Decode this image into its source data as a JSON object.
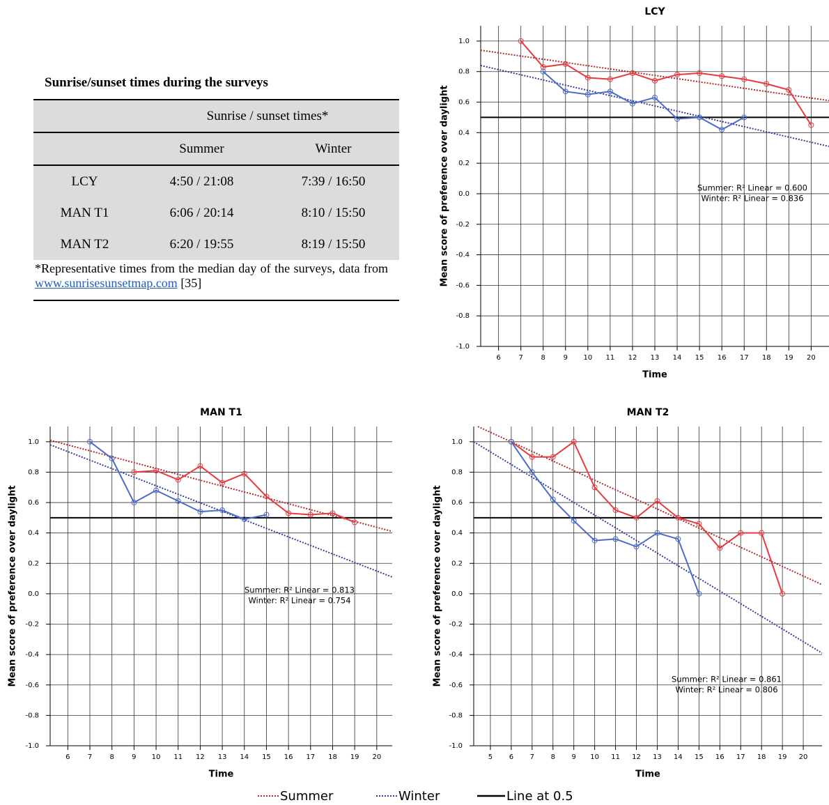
{
  "table": {
    "title": "Sunrise/sunset times during the surveys",
    "group_header": "Sunrise / sunset times*",
    "columns": [
      "Summer",
      "Winter"
    ],
    "rows": [
      [
        "LCY",
        "4:50 / 21:08",
        "7:39 / 16:50"
      ],
      [
        "MAN T1",
        "6:06 / 20:14",
        "8:10 / 15:50"
      ],
      [
        "MAN T2",
        "6:20 / 19:55",
        "8:19 / 15:50"
      ]
    ],
    "footnote": "*Representative times from the median day of the surveys, data from ",
    "link": "www.sunrisesunsetmap.com",
    "reference": " [35]"
  },
  "reference_line_label": "Line at 0.5",
  "chart_data": [
    {
      "type": "line",
      "title": "LCY",
      "xlabel": "Time",
      "ylabel": "Mean score of preference over daylight",
      "xlim": [
        5.2,
        20.8
      ],
      "ylim": [
        -1.0,
        1.1
      ],
      "xticks": [
        6,
        7,
        8,
        9,
        10,
        11,
        12,
        13,
        14,
        15,
        16,
        17,
        18,
        19,
        20
      ],
      "yticks": [
        {
          "value": 1.0,
          "label": "1.0"
        },
        {
          "value": 0.8,
          "label": "0.8"
        },
        {
          "value": 0.6,
          "label": "0.6"
        },
        {
          "value": 0.4,
          "label": "0.4"
        },
        {
          "value": 0.2,
          "label": "0.2"
        },
        {
          "value": 0.0,
          "label": "0.0"
        },
        {
          "value": -0.2,
          "label": "-0.2"
        },
        {
          "value": -0.4,
          "label": "-0.4"
        },
        {
          "value": -0.6,
          "label": "-0.6"
        },
        {
          "value": -0.8,
          "label": "-0.8"
        },
        {
          "value": -1.0,
          "label": "-1.0"
        }
      ],
      "grid": true,
      "ref_value": 0.5,
      "series": [
        {
          "name": "Summer",
          "color": "#e8393f",
          "fit_color": "#b02a2a",
          "x": [
            7,
            8,
            9,
            10,
            11,
            12,
            13,
            14,
            15,
            16,
            17,
            18,
            19,
            20
          ],
          "values": [
            1.0,
            0.83,
            0.85,
            0.76,
            0.75,
            0.79,
            0.74,
            0.78,
            0.79,
            0.77,
            0.75,
            0.72,
            0.68,
            0.45
          ],
          "fit": {
            "x": [
              5.2,
              20.8
            ],
            "values": [
              0.94,
              0.61
            ]
          }
        },
        {
          "name": "Winter",
          "color": "#4a6cc8",
          "fit_color": "#3a3a9e",
          "x": [
            8,
            9,
            10,
            11,
            12,
            13,
            14,
            15,
            16,
            17
          ],
          "values": [
            0.8,
            0.67,
            0.65,
            0.67,
            0.59,
            0.63,
            0.49,
            0.5,
            0.42,
            0.5
          ],
          "fit": {
            "x": [
              5.2,
              20.8
            ],
            "values": [
              0.84,
              0.31
            ]
          }
        }
      ],
      "annotations": [
        "Summer: R² Linear = 0.600",
        "Winter: R² Linear = 0.836"
      ]
    },
    {
      "type": "line",
      "title": "MAN T1",
      "xlabel": "Time",
      "ylabel": "Mean score of preference over daylight",
      "xlim": [
        5.2,
        20.7
      ],
      "ylim": [
        -1.0,
        1.1
      ],
      "xticks": [
        6,
        7,
        8,
        9,
        10,
        11,
        12,
        13,
        14,
        15,
        16,
        17,
        18,
        19,
        20
      ],
      "yticks": [
        {
          "value": 1.0,
          "label": "1.0"
        },
        {
          "value": 0.8,
          "label": "0.8"
        },
        {
          "value": 0.6,
          "label": "0.6"
        },
        {
          "value": 0.4,
          "label": "0.4"
        },
        {
          "value": 0.2,
          "label": "0.2"
        },
        {
          "value": 0.0,
          "label": "0.0"
        },
        {
          "value": -0.2,
          "label": "-0.2"
        },
        {
          "value": -0.4,
          "label": "-0.4"
        },
        {
          "value": -0.6,
          "label": "-0.6"
        },
        {
          "value": -0.8,
          "label": "-0.8"
        },
        {
          "value": -1.0,
          "label": "-1.0"
        }
      ],
      "grid": true,
      "ref_value": 0.5,
      "series": [
        {
          "name": "Summer",
          "color": "#e8393f",
          "fit_color": "#b02a2a",
          "x": [
            9,
            10,
            11,
            12,
            13,
            14,
            15,
            16,
            17,
            18,
            19
          ],
          "values": [
            0.8,
            0.81,
            0.75,
            0.84,
            0.73,
            0.79,
            0.64,
            0.53,
            0.52,
            0.53,
            0.47
          ],
          "fit": {
            "x": [
              5.2,
              20.7
            ],
            "values": [
              1.01,
              0.41
            ]
          }
        },
        {
          "name": "Winter",
          "color": "#4a6cc8",
          "fit_color": "#3a3a9e",
          "x": [
            7,
            8,
            9,
            10,
            11,
            12,
            13,
            14,
            15
          ],
          "values": [
            1.0,
            0.89,
            0.6,
            0.68,
            0.61,
            0.54,
            0.55,
            0.49,
            0.52
          ],
          "fit": {
            "x": [
              5.2,
              20.7
            ],
            "values": [
              0.98,
              0.11
            ]
          }
        }
      ],
      "annotations": [
        "Summer: R² Linear = 0.813",
        "Winter: R² Linear = 0.754"
      ]
    },
    {
      "type": "line",
      "title": "MAN T2",
      "xlabel": "Time",
      "ylabel": "Mean score of preference over daylight",
      "xlim": [
        4.2,
        20.9
      ],
      "ylim": [
        -1.0,
        1.1
      ],
      "xticks": [
        5,
        6,
        7,
        8,
        9,
        10,
        11,
        12,
        13,
        14,
        15,
        16,
        17,
        18,
        19,
        20
      ],
      "yticks": [
        {
          "value": 1.0,
          "label": "1.0"
        },
        {
          "value": 0.8,
          "label": "0.8"
        },
        {
          "value": 0.6,
          "label": "0.6"
        },
        {
          "value": 0.4,
          "label": "0.4"
        },
        {
          "value": 0.2,
          "label": "0.2"
        },
        {
          "value": 0.0,
          "label": "0.0"
        },
        {
          "value": -0.2,
          "label": "-0.2"
        },
        {
          "value": -0.4,
          "label": "-0.4"
        },
        {
          "value": -0.6,
          "label": "-0.6"
        },
        {
          "value": -0.8,
          "label": "-0.8"
        },
        {
          "value": -1.0,
          "label": "-1.0"
        }
      ],
      "grid": true,
      "ref_value": 0.5,
      "series": [
        {
          "name": "Summer",
          "color": "#e8393f",
          "fit_color": "#b02a2a",
          "x": [
            6,
            7,
            8,
            9,
            10,
            11,
            12,
            13,
            14,
            15,
            16,
            17,
            18,
            19
          ],
          "values": [
            1.0,
            0.9,
            0.9,
            1.0,
            0.7,
            0.55,
            0.5,
            0.61,
            0.5,
            0.46,
            0.3,
            0.4,
            0.4,
            0.0
          ],
          "fit": {
            "x": [
              4.4,
              20.9
            ],
            "values": [
              1.1,
              0.06
            ]
          }
        },
        {
          "name": "Winter",
          "color": "#4a6cc8",
          "fit_color": "#3a3a9e",
          "x": [
            6,
            7,
            8,
            9,
            10,
            11,
            12,
            13,
            14,
            15
          ],
          "values": [
            1.0,
            0.8,
            0.62,
            0.48,
            0.35,
            0.36,
            0.31,
            0.4,
            0.36,
            0.0
          ],
          "fit": {
            "x": [
              4.2,
              20.9
            ],
            "values": [
              1.0,
              -0.39
            ]
          }
        }
      ],
      "annotations": [
        "Summer: R² Linear = 0.861",
        "Winter: R² Linear = 0.806"
      ]
    }
  ]
}
